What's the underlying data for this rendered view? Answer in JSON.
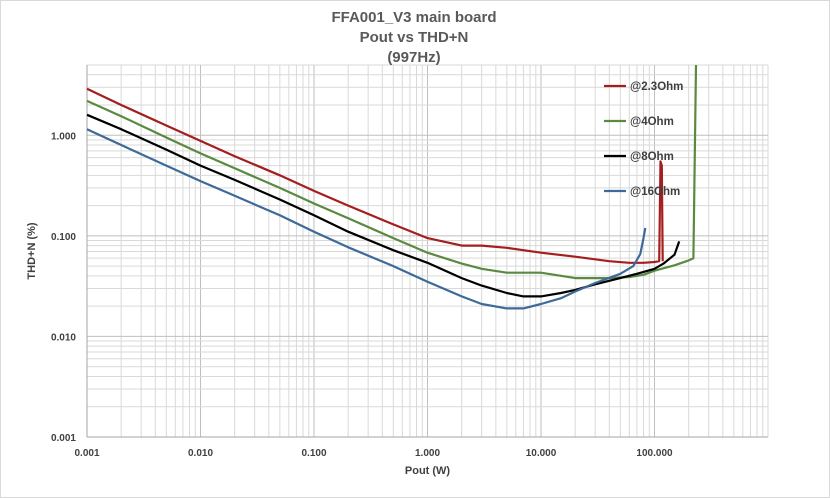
{
  "chart_data": {
    "type": "line",
    "title": [
      "FFA001_V3 main board",
      "Pout vs THD+N",
      "(997Hz)"
    ],
    "xlabel": "Pout (W)",
    "ylabel": "THD+N (%)",
    "xscale": "log",
    "yscale": "log",
    "xlim": [
      0.001,
      1000
    ],
    "ylim": [
      0.001,
      5
    ],
    "xticks": [
      0.001,
      0.01,
      0.1,
      1,
      10,
      100
    ],
    "xtick_labels": [
      "0.001",
      "0.010",
      "0.100",
      "1.000",
      "10.000",
      "100.000"
    ],
    "yticks": [
      0.001,
      0.01,
      0.1,
      1
    ],
    "ytick_labels": [
      "0.001",
      "0.010",
      "0.100",
      "1.000"
    ],
    "grid": "major and minor",
    "legend_position": "top-right",
    "series": [
      {
        "name": "@2.3Ohm",
        "color": "#a41e1e",
        "x": [
          0.001,
          0.002,
          0.005,
          0.01,
          0.02,
          0.05,
          0.1,
          0.2,
          0.5,
          1,
          2,
          3,
          5,
          10,
          20,
          40,
          60,
          80,
          100,
          110,
          113,
          116,
          118
        ],
        "y": [
          2.9,
          2.0,
          1.25,
          0.88,
          0.62,
          0.4,
          0.28,
          0.2,
          0.13,
          0.095,
          0.08,
          0.08,
          0.076,
          0.068,
          0.062,
          0.056,
          0.054,
          0.054,
          0.055,
          0.056,
          0.55,
          0.5,
          0.056
        ]
      },
      {
        "name": "@4Ohm",
        "color": "#5a8a40",
        "x": [
          0.001,
          0.002,
          0.005,
          0.01,
          0.02,
          0.05,
          0.1,
          0.2,
          0.5,
          1,
          2,
          3,
          5,
          10,
          20,
          40,
          60,
          80,
          100,
          150,
          200,
          220,
          232
        ],
        "y": [
          2.2,
          1.55,
          0.95,
          0.66,
          0.47,
          0.3,
          0.21,
          0.15,
          0.095,
          0.068,
          0.053,
          0.047,
          0.043,
          0.043,
          0.038,
          0.038,
          0.039,
          0.041,
          0.045,
          0.051,
          0.057,
          0.06,
          5.0
        ]
      },
      {
        "name": "@8Ohm",
        "color": "#000000",
        "x": [
          0.001,
          0.002,
          0.005,
          0.01,
          0.02,
          0.05,
          0.1,
          0.2,
          0.5,
          1,
          2,
          3,
          5,
          7,
          10,
          15,
          20,
          30,
          50,
          70,
          100,
          120,
          150,
          165
        ],
        "y": [
          1.6,
          1.15,
          0.72,
          0.5,
          0.36,
          0.23,
          0.16,
          0.11,
          0.072,
          0.054,
          0.038,
          0.032,
          0.027,
          0.025,
          0.025,
          0.027,
          0.029,
          0.033,
          0.038,
          0.042,
          0.047,
          0.053,
          0.065,
          0.088
        ]
      },
      {
        "name": "@16Ohm",
        "color": "#3e6a99",
        "x": [
          0.001,
          0.002,
          0.005,
          0.01,
          0.02,
          0.05,
          0.1,
          0.2,
          0.5,
          1,
          2,
          3,
          5,
          7,
          10,
          15,
          20,
          30,
          50,
          65,
          75,
          80,
          83
        ],
        "y": [
          1.15,
          0.8,
          0.5,
          0.35,
          0.25,
          0.16,
          0.11,
          0.077,
          0.05,
          0.035,
          0.025,
          0.021,
          0.019,
          0.019,
          0.021,
          0.024,
          0.028,
          0.034,
          0.042,
          0.05,
          0.066,
          0.095,
          0.12
        ]
      }
    ]
  }
}
